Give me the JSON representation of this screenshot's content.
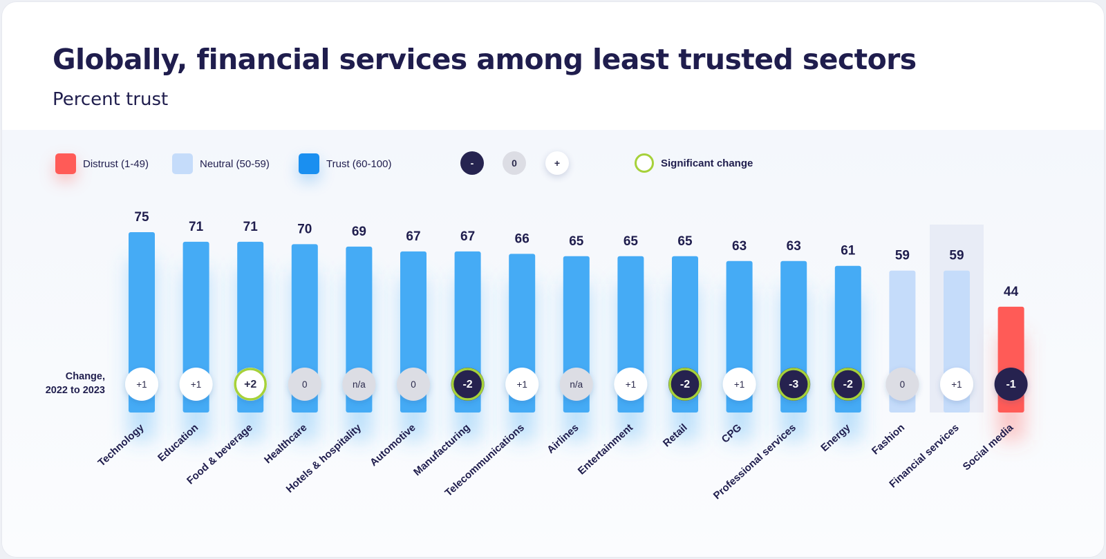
{
  "title": "Globally, financial services among least trusted sectors",
  "subtitle": "Percent trust",
  "legend": {
    "distrust": "Distrust (1-49)",
    "neutral": "Neutral (50-59)",
    "trust": "Trust (60-100)",
    "minus": "-",
    "zero": "0",
    "plus": "+",
    "significant": "Significant change"
  },
  "change_label": "Change,\n2022 to 2023",
  "colors": {
    "trust": "#45abf5",
    "neutral": "#c5dcfa",
    "distrust": "#ff5b57",
    "dark": "#262450",
    "grey": "#dcdde4",
    "ring": "#a6d13a",
    "text": "#1f1d4d"
  },
  "chart_data": {
    "type": "bar",
    "title": "Globally, financial services among least trusted sectors",
    "ylabel": "Percent trust",
    "ylim": [
      0,
      100
    ],
    "highlighted_category": "Financial services",
    "categories": [
      "Technology",
      "Education",
      "Food & beverage",
      "Healthcare",
      "Hotels & hospitality",
      "Automotive",
      "Manufacturing",
      "Telecommunications",
      "Airlines",
      "Entertainment",
      "Retail",
      "CPG",
      "Professional services",
      "Energy",
      "Fashion",
      "Financial services",
      "Social media"
    ],
    "values": [
      75,
      71,
      71,
      70,
      69,
      67,
      67,
      66,
      65,
      65,
      65,
      63,
      63,
      61,
      59,
      59,
      44
    ],
    "levels": [
      "trust",
      "trust",
      "trust",
      "trust",
      "trust",
      "trust",
      "trust",
      "trust",
      "trust",
      "trust",
      "trust",
      "trust",
      "trust",
      "trust",
      "neutral",
      "neutral",
      "distrust"
    ],
    "changes": [
      "+1",
      "+1",
      "+2",
      "0",
      "n/a",
      "0",
      "-2",
      "+1",
      "n/a",
      "+1",
      "-2",
      "+1",
      "-3",
      "-2",
      "0",
      "+1",
      "-1"
    ],
    "significant": [
      false,
      false,
      true,
      false,
      false,
      false,
      true,
      false,
      false,
      false,
      true,
      false,
      true,
      true,
      false,
      false,
      false
    ]
  }
}
